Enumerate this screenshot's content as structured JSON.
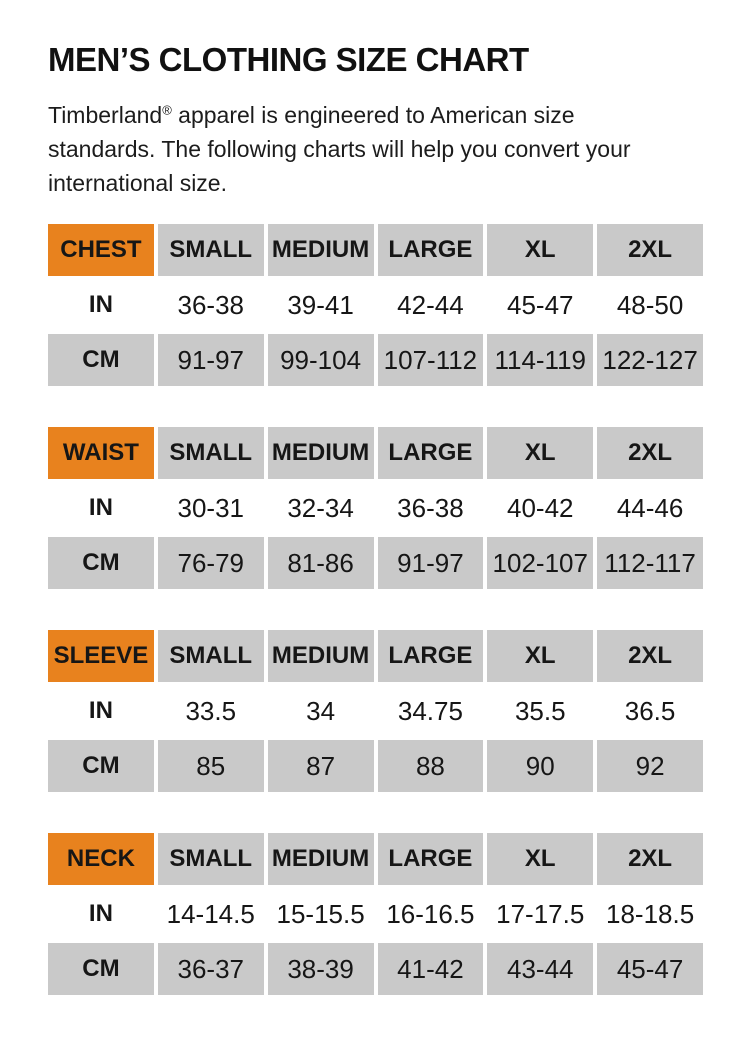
{
  "page": {
    "title": "MEN’S CLOTHING SIZE CHART",
    "intro": {
      "brand": "Timberland",
      "reg_mark": "®",
      "line1_rest": " apparel is engineered to American size",
      "line2": "standards. The following charts will help you convert your",
      "line3": "international size."
    }
  },
  "colors": {
    "accent_orange": "#E8821E",
    "cell_gray": "#C9C9C9",
    "text": "#161616",
    "background": "#FFFFFF"
  },
  "size_headers": [
    "SMALL",
    "MEDIUM",
    "LARGE",
    "XL",
    "2XL"
  ],
  "row_labels": {
    "in": "IN",
    "cm": "CM"
  },
  "tables": [
    {
      "label": "CHEST",
      "in": [
        "36-38",
        "39-41",
        "42-44",
        "45-47",
        "48-50"
      ],
      "cm": [
        "91-97",
        "99-104",
        "107-112",
        "114-119",
        "122-127"
      ]
    },
    {
      "label": "WAIST",
      "in": [
        "30-31",
        "32-34",
        "36-38",
        "40-42",
        "44-46"
      ],
      "cm": [
        "76-79",
        "81-86",
        "91-97",
        "102-107",
        "112-117"
      ]
    },
    {
      "label": "SLEEVE",
      "in": [
        "33.5",
        "34",
        "34.75",
        "35.5",
        "36.5"
      ],
      "cm": [
        "85",
        "87",
        "88",
        "90",
        "92"
      ]
    },
    {
      "label": "NECK",
      "in": [
        "14-14.5",
        "15-15.5",
        "16-16.5",
        "17-17.5",
        "18-18.5"
      ],
      "cm": [
        "36-37",
        "38-39",
        "41-42",
        "43-44",
        "45-47"
      ]
    }
  ]
}
